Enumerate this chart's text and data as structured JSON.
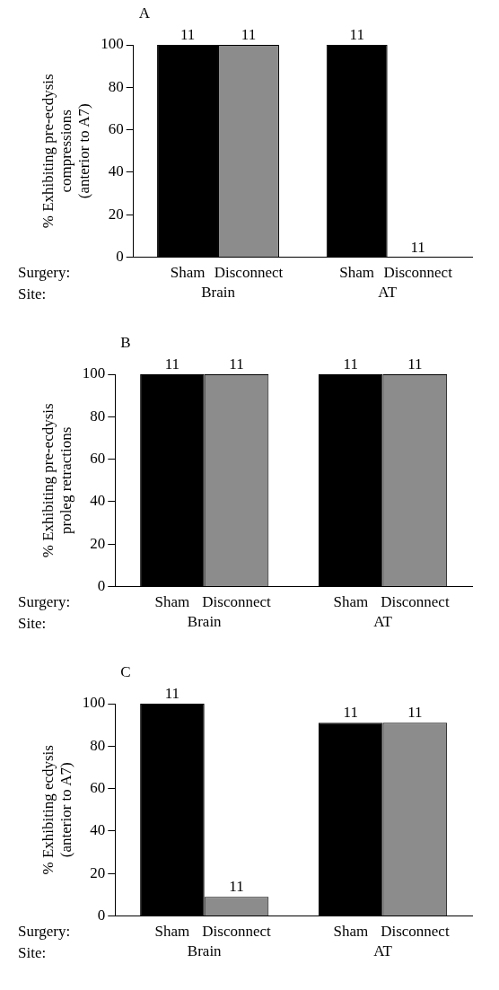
{
  "chart_data": [
    {
      "type": "bar",
      "title": "A",
      "ylabel": "% Exhibiting pre-ecdysis\ncompressions\n(anterior to A7)",
      "categories": [
        "Brain",
        "AT"
      ],
      "series": [
        {
          "name": "Sham",
          "color": "#000000",
          "values": [
            100,
            100
          ]
        },
        {
          "name": "Disconnect",
          "color": "#8c8c8c",
          "values": [
            100,
            0
          ]
        }
      ],
      "ylim": [
        0,
        100
      ],
      "yticks": [
        0,
        20,
        40,
        60,
        80,
        100
      ],
      "grid": false,
      "legend": false,
      "annotations": [
        "Surgery:",
        "Site:",
        {
          "text": "11",
          "x": "Brain",
          "y": 100
        },
        {
          "text": "11",
          "x": "Brain",
          "y": 100
        },
        {
          "text": "11",
          "x": "AT",
          "y": 100
        },
        {
          "text": "11",
          "x": "AT",
          "y": 0
        }
      ]
    },
    {
      "type": "bar",
      "title": "B",
      "ylabel": "% Exhibiting pre-ecdysis\nproleg retractions",
      "categories": [
        "Brain",
        "AT"
      ],
      "series": [
        {
          "name": "Sham",
          "color": "#000000",
          "values": [
            100,
            100
          ]
        },
        {
          "name": "Disconnect",
          "color": "#8c8c8c",
          "values": [
            100,
            100
          ]
        }
      ],
      "ylim": [
        0,
        100
      ],
      "yticks": [
        0,
        20,
        40,
        60,
        80,
        100
      ],
      "grid": false,
      "legend": false,
      "annotations": [
        "Surgery:",
        "Site:",
        {
          "text": "11",
          "x": "Brain",
          "y": 100
        },
        {
          "text": "11",
          "x": "Brain",
          "y": 100
        },
        {
          "text": "11",
          "x": "AT",
          "y": 100
        },
        {
          "text": "11",
          "x": "AT",
          "y": 100
        }
      ]
    },
    {
      "type": "bar",
      "title": "C",
      "ylabel": "% Exhibiting ecdysis\n(anterior to A7)",
      "categories": [
        "Brain",
        "AT"
      ],
      "series": [
        {
          "name": "Sham",
          "color": "#000000",
          "values": [
            100,
            91
          ]
        },
        {
          "name": "Disconnect",
          "color": "#8c8c8c",
          "values": [
            9,
            91
          ]
        }
      ],
      "ylim": [
        0,
        100
      ],
      "yticks": [
        0,
        20,
        40,
        60,
        80,
        100
      ],
      "grid": false,
      "legend": false,
      "annotations": [
        "Surgery:",
        "Site:",
        {
          "text": "11",
          "x": "Brain",
          "y": 100
        },
        {
          "text": "11",
          "x": "Brain",
          "y": 9
        },
        {
          "text": "11",
          "x": "AT",
          "y": 91
        },
        {
          "text": "11",
          "x": "AT",
          "y": 91
        }
      ]
    }
  ]
}
